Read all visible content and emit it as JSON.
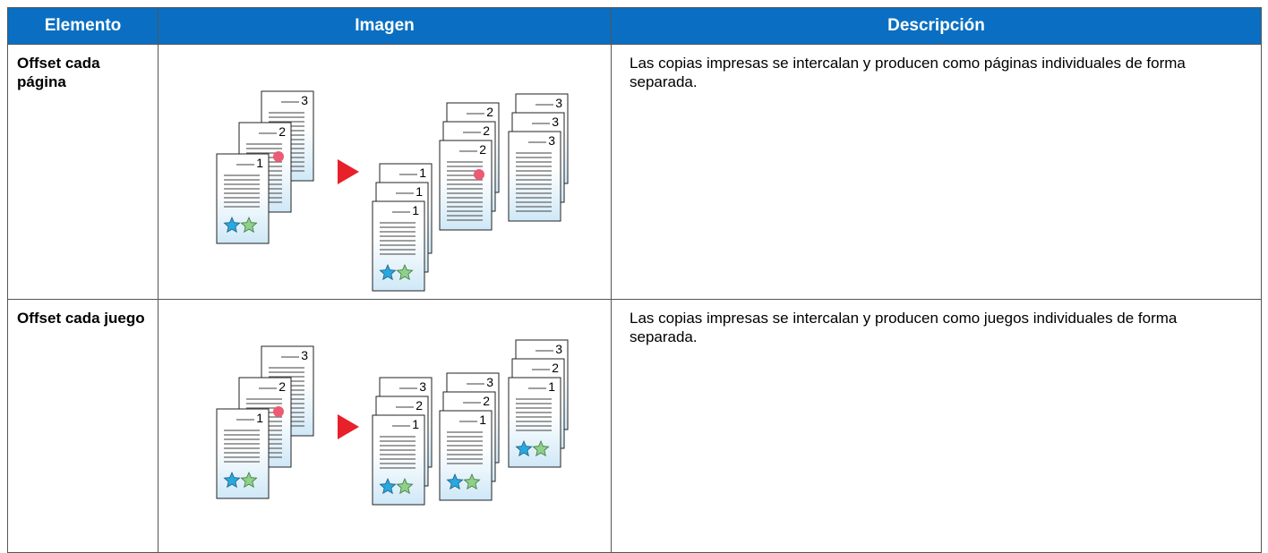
{
  "table": {
    "header": [
      "Elemento",
      "Imagen",
      "Descripción"
    ],
    "rows": [
      {
        "item": "Offset cada página",
        "description": "Las copias impresas se intercalan y producen como páginas individuales de forma separada.",
        "illustration": {
          "originals": [
            "3",
            "2",
            "1"
          ],
          "stacks": [
            [
              "1",
              "1",
              "1"
            ],
            [
              "2",
              "2",
              "2"
            ],
            [
              "3",
              "3",
              "3"
            ]
          ]
        }
      },
      {
        "item": "Offset cada juego",
        "description": "Las copias impresas se intercalan y producen como juegos individuales de forma separada.",
        "illustration": {
          "originals": [
            "3",
            "2",
            "1"
          ],
          "stacks": [
            [
              "3",
              "2",
              "1"
            ],
            [
              "3",
              "2",
              "1"
            ],
            [
              "3",
              "2",
              "1"
            ]
          ]
        }
      }
    ]
  }
}
